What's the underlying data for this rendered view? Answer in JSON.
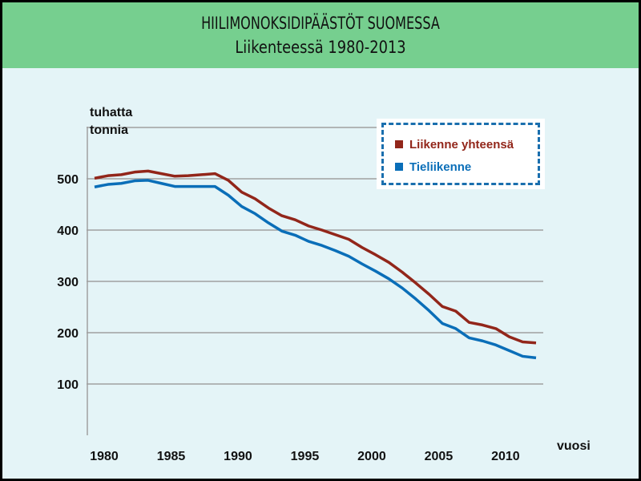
{
  "chart_data": {
    "type": "line",
    "title": "HIILIMONOKSIDIPÄÄSTÖT SUOMESSA",
    "subtitle": "Liikenteessä 1980-2013",
    "ylabel": "tuhatta tonnia",
    "xlabel": "vuosi",
    "ylim": [
      0,
      600
    ],
    "yticks": [
      100,
      200,
      300,
      400,
      500
    ],
    "xticks": [
      1980,
      1985,
      1990,
      1995,
      2000,
      2005,
      2010
    ],
    "grid": true,
    "legend_position": "top-right",
    "x": [
      1980,
      1981,
      1982,
      1983,
      1984,
      1985,
      1986,
      1987,
      1988,
      1989,
      1990,
      1991,
      1992,
      1993,
      1994,
      1995,
      1996,
      1997,
      1998,
      1999,
      2000,
      2001,
      2002,
      2003,
      2004,
      2005,
      2006,
      2007,
      2008,
      2009,
      2010,
      2011,
      2012,
      2013
    ],
    "series": [
      {
        "name": "Liikenne yhteensä",
        "color": "#92261A",
        "values": [
          501,
          506,
          508,
          513,
          515,
          510,
          505,
          506,
          508,
          510,
          497,
          474,
          461,
          443,
          428,
          420,
          408,
          400,
          391,
          382,
          366,
          352,
          337,
          318,
          297,
          275,
          251,
          242,
          220,
          215,
          208,
          192,
          182,
          180
        ]
      },
      {
        "name": "Tieliikenne",
        "color": "#0A6EB8",
        "values": [
          484,
          489,
          491,
          496,
          497,
          491,
          485,
          485,
          485,
          485,
          468,
          446,
          432,
          414,
          398,
          390,
          378,
          370,
          360,
          349,
          334,
          320,
          305,
          287,
          266,
          243,
          218,
          208,
          190,
          184,
          176,
          165,
          154,
          151
        ]
      }
    ]
  }
}
